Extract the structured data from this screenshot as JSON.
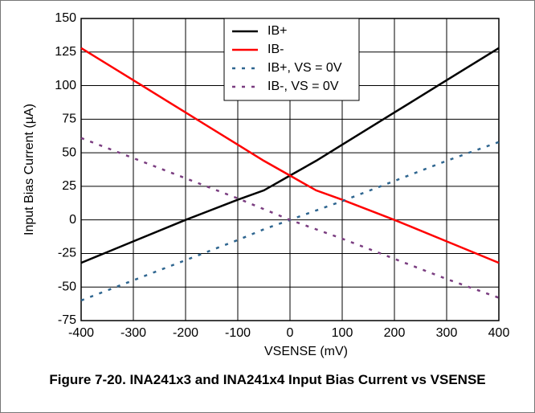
{
  "chart_data": {
    "type": "line",
    "title": "Figure 7-20. INA241x3 and INA241x4 Input Bias Current vs VSENSE",
    "x_label": "VSENSE (mV)",
    "y_label": "Input Bias Current (µA)",
    "x": [
      -400,
      -300,
      -200,
      -100,
      -50,
      0,
      50,
      100,
      200,
      300,
      400
    ],
    "series": [
      {
        "name": "IB+",
        "color": "#000000",
        "dash": false,
        "values": [
          -32,
          -16,
          0,
          15,
          22,
          33,
          44,
          56,
          80,
          104,
          128
        ]
      },
      {
        "name": "IB-",
        "color": "#ff0000",
        "dash": false,
        "values": [
          128,
          104,
          80,
          56,
          44,
          33,
          22,
          15,
          0,
          -16,
          -32
        ]
      },
      {
        "name": "IB+, VS = 0V",
        "color": "#2f6690",
        "dash": true,
        "values": [
          -60,
          -45,
          -30,
          -15,
          -7,
          0,
          7,
          14,
          29,
          44,
          58
        ]
      },
      {
        "name": "IB-, VS = 0V",
        "color": "#7a3d80",
        "dash": true,
        "values": [
          61,
          46,
          31,
          16,
          8,
          0,
          -7,
          -14,
          -29,
          -44,
          -58
        ]
      }
    ],
    "xlim": [
      -400,
      400
    ],
    "xticks": [
      -400,
      -300,
      -200,
      -100,
      0,
      100,
      200,
      300,
      400
    ],
    "ylim": [
      -75,
      150
    ],
    "yticks": [
      -75,
      -50,
      -25,
      0,
      25,
      50,
      75,
      100,
      125,
      150
    ],
    "grid": true,
    "legend": "top"
  }
}
